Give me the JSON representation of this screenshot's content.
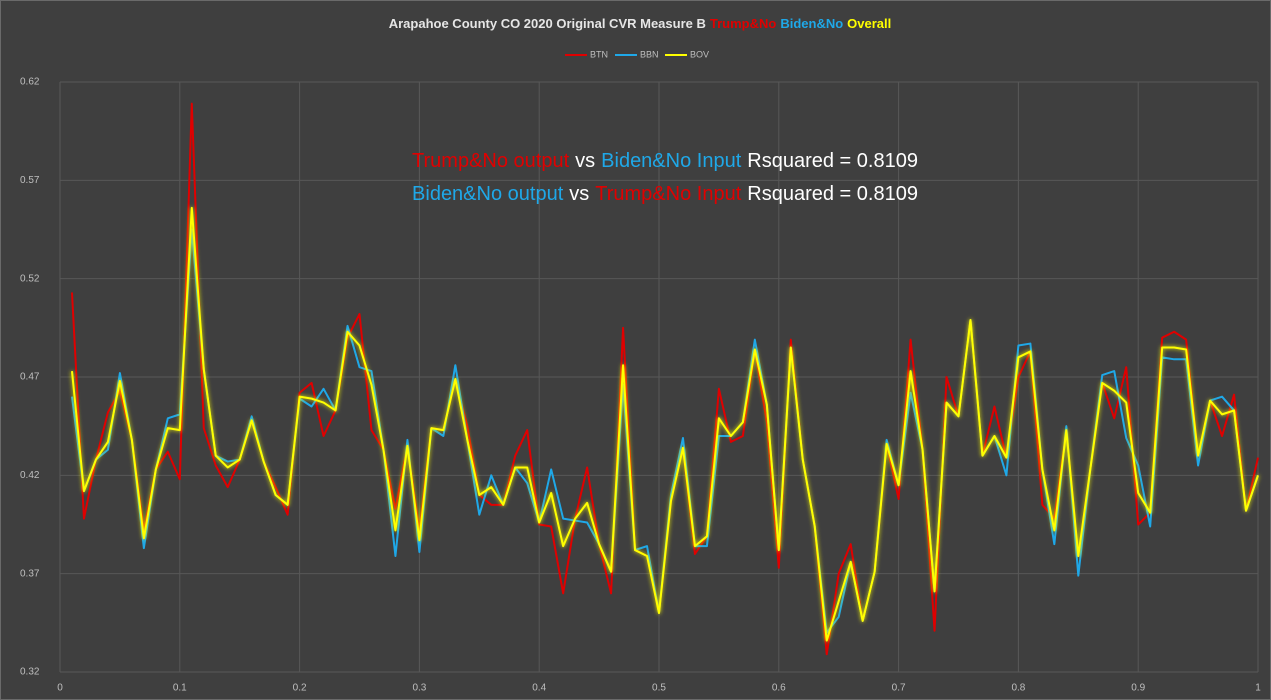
{
  "chart_data": {
    "type": "line",
    "title_parts": [
      {
        "text": "Arapahoe County CO 2020 Original CVR Measure B",
        "color": "#e6e6e6"
      },
      {
        "text": "Trump&No",
        "color": "#e00000"
      },
      {
        "text": "Biden&No",
        "color": "#1fa8e8"
      },
      {
        "text": "Overall",
        "color": "#ffff00"
      }
    ],
    "annotations": [
      [
        {
          "text": "Trump&No output",
          "color": "#e00000"
        },
        {
          "text": "vs",
          "color": "#ffffff"
        },
        {
          "text": "Biden&No Input",
          "color": "#1fa8e8"
        },
        {
          "text": "Rsquared = 0.8109",
          "color": "#ffffff"
        }
      ],
      [
        {
          "text": "Biden&No output",
          "color": "#1fa8e8"
        },
        {
          "text": "vs",
          "color": "#ffffff"
        },
        {
          "text": "Trump&No Input",
          "color": "#e00000"
        },
        {
          "text": "Rsquared = 0.8109",
          "color": "#ffffff"
        }
      ]
    ],
    "x": [
      0.01,
      0.02,
      0.03,
      0.04,
      0.05,
      0.06,
      0.07,
      0.08,
      0.09,
      0.1,
      0.11,
      0.12,
      0.13,
      0.14,
      0.15,
      0.16,
      0.17,
      0.18,
      0.19,
      0.2,
      0.21,
      0.22,
      0.23,
      0.24,
      0.25,
      0.26,
      0.27,
      0.28,
      0.29,
      0.3,
      0.31,
      0.32,
      0.33,
      0.34,
      0.35,
      0.36,
      0.37,
      0.38,
      0.39,
      0.4,
      0.41,
      0.42,
      0.43,
      0.44,
      0.45,
      0.46,
      0.47,
      0.48,
      0.49,
      0.5,
      0.51,
      0.52,
      0.53,
      0.54,
      0.55,
      0.56,
      0.57,
      0.58,
      0.59,
      0.6,
      0.61,
      0.62,
      0.63,
      0.64,
      0.65,
      0.66,
      0.67,
      0.68,
      0.69,
      0.7,
      0.71,
      0.72,
      0.73,
      0.74,
      0.75,
      0.76,
      0.77,
      0.78,
      0.79,
      0.8,
      0.81,
      0.82,
      0.83,
      0.84,
      0.85,
      0.86,
      0.87,
      0.88,
      0.89,
      0.9,
      0.91,
      0.92,
      0.93,
      0.94,
      0.95,
      0.96,
      0.97,
      0.98,
      0.99,
      1.0
    ],
    "series": [
      {
        "name": "BTN",
        "color": "#e00000",
        "values": [
          0.513,
          0.398,
          0.428,
          0.452,
          0.463,
          0.438,
          0.392,
          0.423,
          0.432,
          0.418,
          0.609,
          0.444,
          0.425,
          0.414,
          0.428,
          0.448,
          0.427,
          0.414,
          0.4,
          0.462,
          0.467,
          0.44,
          0.453,
          0.49,
          0.502,
          0.443,
          0.433,
          0.403,
          0.435,
          0.392,
          0.444,
          0.443,
          0.469,
          0.445,
          0.41,
          0.405,
          0.405,
          0.43,
          0.443,
          0.395,
          0.394,
          0.36,
          0.398,
          0.424,
          0.385,
          0.36,
          0.495,
          0.382,
          0.379,
          0.35,
          0.407,
          0.434,
          0.38,
          0.389,
          0.464,
          0.437,
          0.44,
          0.484,
          0.447,
          0.373,
          0.489,
          0.428,
          0.394,
          0.329,
          0.37,
          0.385,
          0.346,
          0.371,
          0.436,
          0.408,
          0.489,
          0.433,
          0.341,
          0.47,
          0.45,
          0.499,
          0.43,
          0.455,
          0.429,
          0.47,
          0.483,
          0.405,
          0.398,
          0.443,
          0.379,
          0.423,
          0.467,
          0.449,
          0.475,
          0.395,
          0.401,
          0.49,
          0.493,
          0.489,
          0.43,
          0.458,
          0.44,
          0.461,
          0.402,
          0.429
        ]
      },
      {
        "name": "BBN",
        "color": "#1fa8e8",
        "values": [
          0.46,
          0.412,
          0.428,
          0.433,
          0.472,
          0.438,
          0.383,
          0.423,
          0.449,
          0.451,
          0.545,
          0.474,
          0.43,
          0.427,
          0.428,
          0.45,
          0.427,
          0.41,
          0.405,
          0.459,
          0.455,
          0.464,
          0.453,
          0.496,
          0.475,
          0.473,
          0.433,
          0.379,
          0.438,
          0.381,
          0.444,
          0.44,
          0.476,
          0.438,
          0.4,
          0.42,
          0.405,
          0.424,
          0.416,
          0.396,
          0.423,
          0.398,
          0.397,
          0.396,
          0.385,
          0.371,
          0.466,
          0.382,
          0.384,
          0.35,
          0.41,
          0.439,
          0.384,
          0.384,
          0.44,
          0.44,
          0.447,
          0.489,
          0.456,
          0.382,
          0.485,
          0.428,
          0.394,
          0.34,
          0.348,
          0.376,
          0.346,
          0.371,
          0.438,
          0.415,
          0.462,
          0.433,
          0.361,
          0.457,
          0.45,
          0.499,
          0.43,
          0.44,
          0.42,
          0.486,
          0.487,
          0.423,
          0.385,
          0.445,
          0.369,
          0.423,
          0.471,
          0.473,
          0.439,
          0.425,
          0.394,
          0.48,
          0.479,
          0.479,
          0.425,
          0.458,
          0.46,
          0.453,
          0.402,
          0.42
        ]
      },
      {
        "name": "BOV",
        "color": "#ffff00",
        "values": [
          0.473,
          0.412,
          0.428,
          0.437,
          0.468,
          0.438,
          0.388,
          0.423,
          0.444,
          0.443,
          0.556,
          0.474,
          0.43,
          0.424,
          0.428,
          0.448,
          0.427,
          0.41,
          0.405,
          0.46,
          0.459,
          0.457,
          0.453,
          0.493,
          0.486,
          0.466,
          0.433,
          0.392,
          0.435,
          0.387,
          0.444,
          0.443,
          0.469,
          0.438,
          0.41,
          0.414,
          0.405,
          0.424,
          0.424,
          0.396,
          0.411,
          0.384,
          0.398,
          0.406,
          0.385,
          0.371,
          0.476,
          0.382,
          0.379,
          0.35,
          0.407,
          0.434,
          0.384,
          0.389,
          0.449,
          0.44,
          0.447,
          0.484,
          0.456,
          0.382,
          0.485,
          0.428,
          0.394,
          0.336,
          0.356,
          0.376,
          0.346,
          0.371,
          0.436,
          0.415,
          0.473,
          0.433,
          0.361,
          0.457,
          0.45,
          0.499,
          0.43,
          0.44,
          0.429,
          0.48,
          0.483,
          0.423,
          0.392,
          0.443,
          0.379,
          0.423,
          0.467,
          0.463,
          0.457,
          0.411,
          0.401,
          0.485,
          0.485,
          0.484,
          0.43,
          0.458,
          0.451,
          0.453,
          0.402,
          0.42
        ]
      }
    ],
    "xlim": [
      0,
      1
    ],
    "xticks": [
      0,
      0.1,
      0.2,
      0.3,
      0.4,
      0.5,
      0.6,
      0.7,
      0.8,
      0.9,
      1
    ],
    "ylim": [
      0.32,
      0.62
    ],
    "yticks": [
      0.32,
      0.37,
      0.42,
      0.47,
      0.52,
      0.57,
      0.62
    ],
    "grid": true,
    "legend": "top"
  }
}
